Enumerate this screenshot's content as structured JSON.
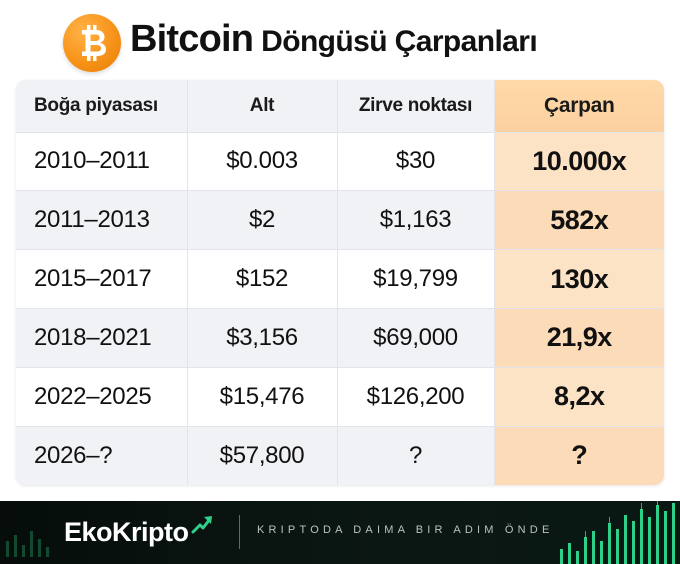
{
  "header": {
    "logo_icon": "bitcoin-icon",
    "title_main": "Bitcoin",
    "title_sub": "Döngüsü Çarpanları"
  },
  "table": {
    "columns": [
      "Boğa piyasası",
      "Alt",
      "Zirve noktası",
      "Çarpan"
    ],
    "rows": [
      {
        "period": "2010–2011",
        "low": "$0.003",
        "peak": "$30",
        "multiplier": "10.000x"
      },
      {
        "period": "2011–2013",
        "low": "$2",
        "peak": "$1,163",
        "multiplier": "582x"
      },
      {
        "period": "2015–2017",
        "low": "$152",
        "peak": "$19,799",
        "multiplier": "130x"
      },
      {
        "period": "2018–2021",
        "low": "$3,156",
        "peak": "$69,000",
        "multiplier": "21,9x"
      },
      {
        "period": "2022–2025",
        "low": "$15,476",
        "peak": "$126,200",
        "multiplier": "8,2x"
      },
      {
        "period": "2026–?",
        "low": "$57,800",
        "peak": "?",
        "multiplier": "?"
      }
    ]
  },
  "footer": {
    "brand_part1": "Eko",
    "brand_part2": "Kripto",
    "brand_icon": "rising-arrow-icon",
    "slogan": "KRIPTODA DAIMA BIR ADIM ÖNDE"
  },
  "colors": {
    "bitcoin_orange": "#f7931a",
    "multiplier_column": "#fde3c6",
    "footer_bg": "#0b1713",
    "brand_green": "#2fd18a"
  }
}
